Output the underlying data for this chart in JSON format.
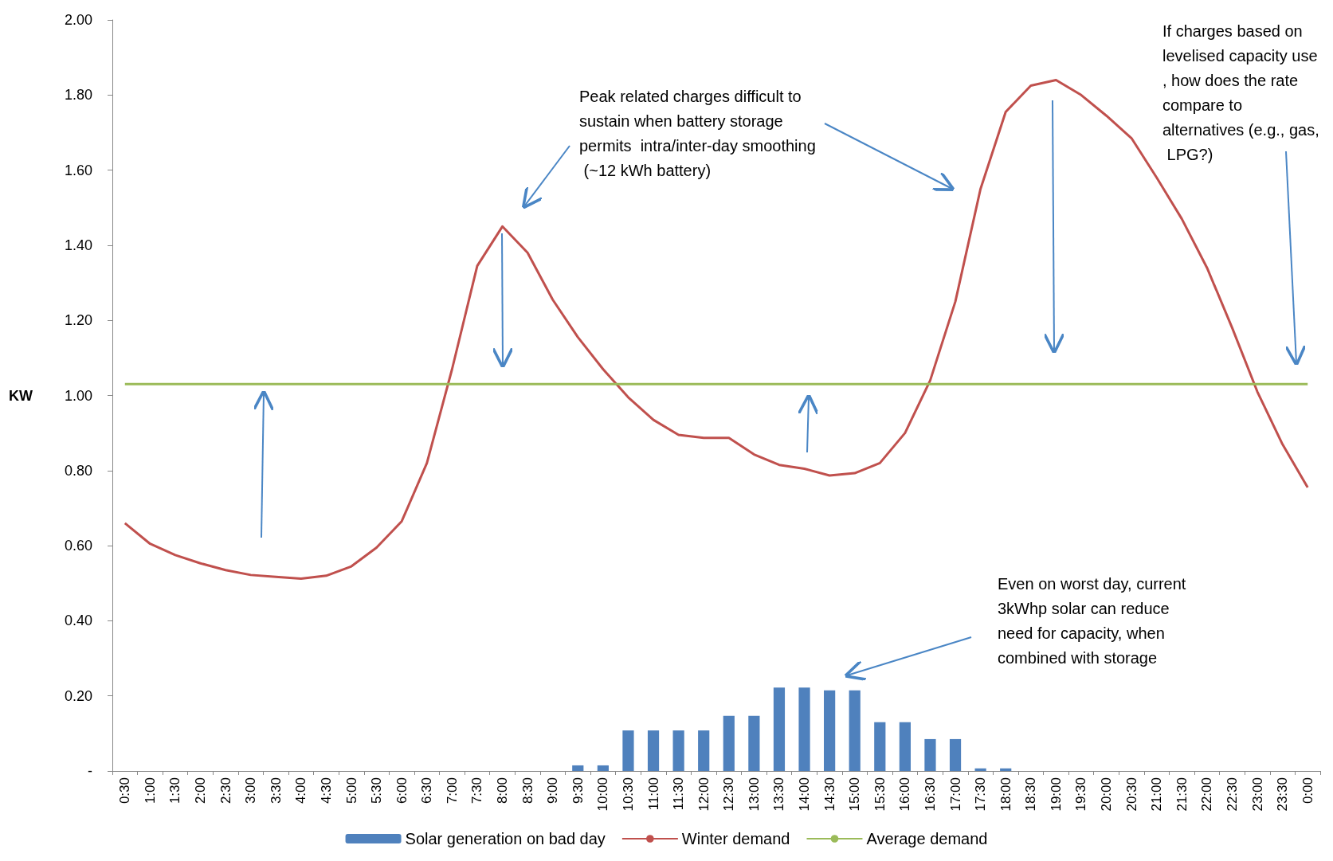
{
  "chart_data": {
    "type": "bar",
    "ylabel": "KW",
    "categories": [
      "0:30",
      "1:00",
      "1:30",
      "2:00",
      "2:30",
      "3:00",
      "3:30",
      "4:00",
      "4:30",
      "5:00",
      "5:30",
      "6:00",
      "6:30",
      "7:00",
      "7:30",
      "8:00",
      "8:30",
      "9:00",
      "9:30",
      "10:00",
      "10:30",
      "11:00",
      "11:30",
      "12:00",
      "12:30",
      "13:00",
      "13:30",
      "14:00",
      "14:30",
      "15:00",
      "15:30",
      "16:00",
      "16:30",
      "17:00",
      "17:30",
      "18:00",
      "18:30",
      "19:00",
      "19:30",
      "20:00",
      "20:30",
      "21:00",
      "21:30",
      "22:00",
      "22:30",
      "23:00",
      "23:30",
      "0:00"
    ],
    "series": [
      {
        "name": "Solar generation on bad day",
        "color": "#4f81bd",
        "values": [
          0,
          0,
          0,
          0,
          0,
          0,
          0,
          0,
          0,
          0,
          0,
          0,
          0,
          0,
          0,
          0,
          0,
          0,
          0.015,
          0.015,
          0.108,
          0.108,
          0.108,
          0.108,
          0.147,
          0.147,
          0.222,
          0.222,
          0.215,
          0.215,
          0.13,
          0.13,
          0.085,
          0.085,
          0.007,
          0.007,
          0,
          0,
          0,
          0,
          0,
          0,
          0,
          0,
          0,
          0,
          0,
          0
        ]
      },
      {
        "name": "Winter demand",
        "type": "line",
        "color": "#c0504d",
        "values": [
          0.66,
          0.605,
          0.575,
          0.553,
          0.535,
          0.522,
          0.517,
          0.512,
          0.52,
          0.545,
          0.595,
          0.665,
          0.82,
          1.07,
          1.345,
          1.45,
          1.38,
          1.255,
          1.155,
          1.07,
          0.995,
          0.935,
          0.895,
          0.887,
          0.887,
          0.843,
          0.815,
          0.805,
          0.787,
          0.793,
          0.82,
          0.9,
          1.04,
          1.25,
          1.55,
          1.755,
          1.825,
          1.84,
          1.8,
          1.745,
          1.685,
          1.58,
          1.47,
          1.34,
          1.18,
          1.01,
          0.87,
          0.755
        ]
      },
      {
        "name": "Average demand",
        "type": "line",
        "color": "#9bbb59",
        "values": [
          1.03,
          1.03,
          1.03,
          1.03,
          1.03,
          1.03,
          1.03,
          1.03,
          1.03,
          1.03,
          1.03,
          1.03,
          1.03,
          1.03,
          1.03,
          1.03,
          1.03,
          1.03,
          1.03,
          1.03,
          1.03,
          1.03,
          1.03,
          1.03,
          1.03,
          1.03,
          1.03,
          1.03,
          1.03,
          1.03,
          1.03,
          1.03,
          1.03,
          1.03,
          1.03,
          1.03,
          1.03,
          1.03,
          1.03,
          1.03,
          1.03,
          1.03,
          1.03,
          1.03,
          1.03,
          1.03,
          1.03,
          1.03
        ]
      }
    ],
    "ylim": [
      0,
      2
    ],
    "yticks": [
      {
        "value": 0,
        "label": "-"
      },
      {
        "value": 0.2,
        "label": "0.20"
      },
      {
        "value": 0.4,
        "label": "0.40"
      },
      {
        "value": 0.6,
        "label": "0.60"
      },
      {
        "value": 0.8,
        "label": "0.80"
      },
      {
        "value": 1,
        "label": "1.00"
      },
      {
        "value": 1.2,
        "label": "1.20"
      },
      {
        "value": 1.4,
        "label": "1.40"
      },
      {
        "value": 1.6,
        "label": "1.60"
      },
      {
        "value": 1.8,
        "label": "1.80"
      },
      {
        "value": 2,
        "label": "2.00"
      }
    ],
    "legend": "bottom",
    "marker": "none",
    "annotations": [
      "Peak related charges difficult to sustain when battery storage permits  intra/inter-day smoothing (~12 kWh battery)",
      "If charges based on levelised capacity use, how does the rate compare to alternatives (e.g., gas, LPG?)",
      "Even on worst day, current 3kWhp solar can reduce need for capacity, when combined with storage"
    ]
  }
}
